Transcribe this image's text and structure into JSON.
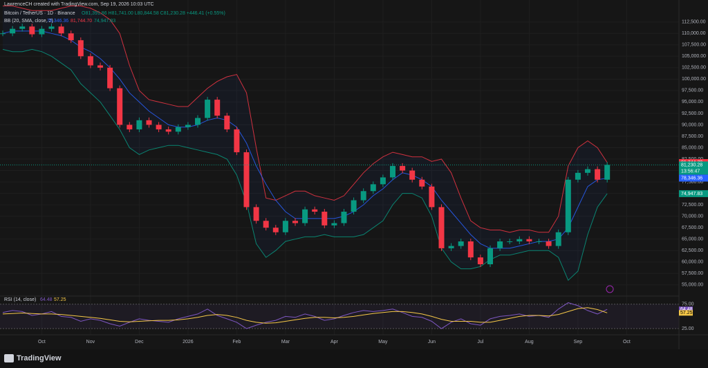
{
  "chart_data": {
    "type": "candlestick",
    "credit": "LawrenceCH created with TradingView.com, Sep 19, 2026 10:03 UTC",
    "title": "Bitcoin / TetherUS · 1D · Binance",
    "ohlc_text": "O81,391.86 H81,741.00 L80,844.58 C81,230.28 +446.41 (+0.55%)",
    "brand": "TradingView",
    "countdown": "13:56:47",
    "up_color": "#089981",
    "down_color": "#f23645",
    "categories": [
      null,
      null,
      null,
      null,
      "Oct",
      null,
      null,
      null,
      null,
      "Nov",
      null,
      null,
      null,
      null,
      "Dec",
      null,
      null,
      null,
      null,
      "2026",
      null,
      null,
      null,
      null,
      "Feb",
      null,
      null,
      null,
      null,
      "Mar",
      null,
      null,
      null,
      null,
      "Apr",
      null,
      null,
      null,
      null,
      "May",
      null,
      null,
      null,
      null,
      "Jun",
      null,
      null,
      null,
      null,
      "Jul",
      null,
      null,
      null,
      null,
      "Aug",
      null,
      null,
      null,
      null,
      "Sep",
      null,
      null,
      null,
      null,
      "Oct"
    ],
    "close": [
      110000,
      111000,
      111500,
      109800,
      111000,
      111500,
      110000,
      108500,
      105000,
      103000,
      102500,
      98000,
      90000,
      89000,
      91000,
      90000,
      89000,
      88500,
      89500,
      90000,
      91500,
      95500,
      92000,
      89000,
      84000,
      72000,
      69000,
      67500,
      66500,
      69000,
      68500,
      71500,
      71000,
      68000,
      68500,
      71000,
      73500,
      75500,
      77000,
      78500,
      81000,
      80000,
      78000,
      76500,
      72000,
      63000,
      63500,
      64500,
      61000,
      59500,
      63000,
      64500,
      64500,
      65000,
      64500,
      64500,
      63500,
      66500,
      78000,
      79500,
      80300,
      78000,
      81230.28,
      null,
      null
    ],
    "close_label": "81,230.28",
    "ylim": [
      53000,
      117300
    ],
    "yticks": [
      {
        "value": 55000,
        "label": "55,000.00"
      },
      {
        "value": 57500,
        "label": "57,500.00"
      },
      {
        "value": 60000,
        "label": "60,000.00"
      },
      {
        "value": 62500,
        "label": "62,500.00"
      },
      {
        "value": 65000,
        "label": "65,000.00"
      },
      {
        "value": 67500,
        "label": "67,500.00"
      },
      {
        "value": 70000,
        "label": "70,000.00"
      },
      {
        "value": 72500,
        "label": "72,500.00"
      },
      {
        "value": 75000,
        "label": "75,000.00"
      },
      {
        "value": 77500,
        "label": "77,500.00"
      },
      {
        "value": 80000,
        "label": "80,000.00"
      },
      {
        "value": 82500,
        "label": "82,500.00"
      },
      {
        "value": 85000,
        "label": "85,000.00"
      },
      {
        "value": 87500,
        "label": "87,500.00"
      },
      {
        "value": 90000,
        "label": "90,000.00"
      },
      {
        "value": 92500,
        "label": "92,500.00"
      },
      {
        "value": 95000,
        "label": "95,000.00"
      },
      {
        "value": 97500,
        "label": "97,500.00"
      },
      {
        "value": 100000,
        "label": "100,000.00"
      },
      {
        "value": 102500,
        "label": "102,500.00"
      },
      {
        "value": 105000,
        "label": "105,000.00"
      },
      {
        "value": 107500,
        "label": "107,500.00"
      },
      {
        "value": 110000,
        "label": "110,000.00"
      },
      {
        "value": 112500,
        "label": "112,500.00"
      }
    ],
    "bollinger": {
      "title": "BB (20, SMA, close, 2)",
      "basis": {
        "color": "#2962ff",
        "last_label": "78,346.36",
        "values": [
          110000,
          110500,
          110500,
          110500,
          110500,
          110000,
          109500,
          108500,
          107000,
          106000,
          104500,
          102500,
          100000,
          97000,
          95000,
          93000,
          91500,
          90000,
          89500,
          89500,
          90000,
          91000,
          91500,
          91000,
          89500,
          86000,
          81000,
          77000,
          73500,
          71000,
          69500,
          69500,
          69500,
          69500,
          69500,
          70000,
          71000,
          72500,
          74500,
          76000,
          78000,
          79500,
          79000,
          78000,
          76500,
          73500,
          71000,
          68500,
          66000,
          64000,
          63000,
          63000,
          63000,
          63500,
          64000,
          64500,
          64500,
          65000,
          67500,
          72000,
          76500,
          78000,
          78346.36,
          null,
          null
        ]
      },
      "upper": {
        "color": "#f23645",
        "last_label": "81,744.70",
        "values": [
          116000,
          116000,
          115500,
          115000,
          115000,
          115000,
          115500,
          116000,
          116000,
          115500,
          114500,
          113000,
          110000,
          103000,
          97500,
          95500,
          95000,
          94500,
          94000,
          94000,
          96000,
          98000,
          99500,
          100500,
          101000,
          97000,
          85000,
          74000,
          73500,
          74500,
          75500,
          75500,
          74500,
          74000,
          73500,
          74500,
          77000,
          79500,
          81500,
          83000,
          84000,
          83500,
          83000,
          83000,
          82000,
          82500,
          79500,
          74000,
          69000,
          67500,
          67000,
          67000,
          66500,
          67000,
          67000,
          66500,
          66500,
          70000,
          81000,
          85000,
          86500,
          85000,
          81744.7,
          null,
          null
        ]
      },
      "lower": {
        "color": "#089981",
        "last_label": "74,947.83",
        "values": [
          106500,
          106000,
          106000,
          106500,
          106000,
          105000,
          103500,
          102000,
          99000,
          97000,
          95000,
          92000,
          89000,
          85000,
          83500,
          84500,
          85000,
          85500,
          85500,
          85000,
          84500,
          84000,
          83500,
          82500,
          79000,
          73000,
          64000,
          61000,
          62500,
          64500,
          65000,
          65500,
          65500,
          66000,
          65500,
          65500,
          65500,
          66000,
          67500,
          69000,
          72500,
          75000,
          75000,
          74000,
          70000,
          63000,
          60000,
          58500,
          58500,
          59000,
          60500,
          61500,
          61500,
          62000,
          62500,
          62500,
          62500,
          61000,
          56000,
          58000,
          66000,
          72000,
          74947.83,
          null,
          null
        ]
      }
    },
    "rsi": {
      "title": "RSI (14, close)",
      "ylim": [
        18,
        86
      ],
      "yticks": [
        {
          "value": 75,
          "label": "75.00"
        },
        {
          "value": 25,
          "label": "25.00"
        }
      ],
      "rsi": {
        "color": "#7e57c2",
        "values": [
          58,
          62,
          60,
          52,
          55,
          60,
          50,
          48,
          40,
          45,
          42,
          35,
          30,
          38,
          45,
          42,
          40,
          38,
          45,
          50,
          55,
          65,
          52,
          45,
          38,
          25,
          32,
          38,
          42,
          50,
          48,
          55,
          50,
          42,
          45,
          52,
          58,
          62,
          60,
          62,
          65,
          58,
          50,
          48,
          40,
          25,
          38,
          45,
          35,
          32,
          45,
          50,
          52,
          55,
          50,
          52,
          48,
          65,
          78,
          72,
          62,
          55,
          64.48,
          null,
          null
        ]
      },
      "ma": {
        "color": "#f7c948",
        "values": [
          55,
          56,
          57,
          56,
          55,
          55,
          54,
          52,
          50,
          48,
          46,
          43,
          40,
          39,
          40,
          41,
          42,
          42,
          43,
          45,
          48,
          52,
          54,
          52,
          48,
          42,
          38,
          36,
          37,
          40,
          43,
          46,
          48,
          48,
          47,
          48,
          50,
          53,
          56,
          58,
          60,
          60,
          58,
          55,
          50,
          44,
          40,
          40,
          40,
          38,
          38,
          42,
          46,
          50,
          52,
          52,
          51,
          54,
          60,
          66,
          68,
          64,
          57.25,
          null,
          null
        ]
      }
    }
  }
}
